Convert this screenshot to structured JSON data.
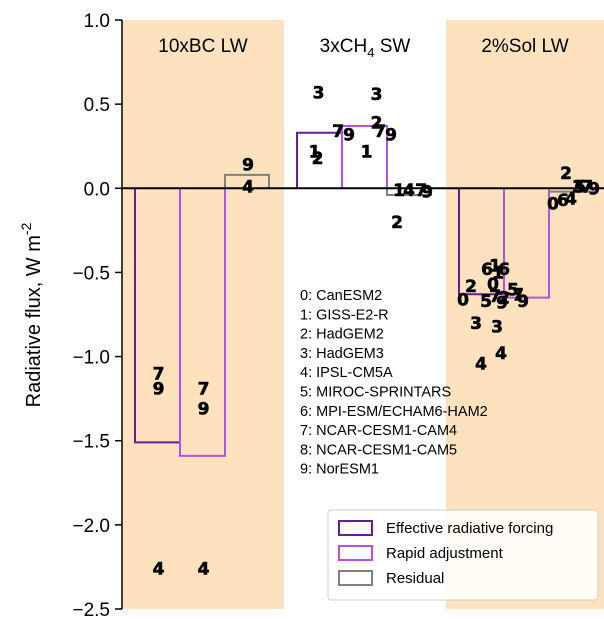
{
  "chart_data": {
    "type": "bar",
    "ylabel": "Radiative flux, W m",
    "ylabel_sup": "-2",
    "ylim": [
      -2.5,
      1.0
    ],
    "yticks": [
      1.0,
      0.5,
      0.0,
      -0.5,
      -1.0,
      -1.5,
      -2.0,
      -2.5
    ],
    "ytick_labels": [
      "1.0",
      "0.5",
      "0.0",
      "−0.5",
      "−1.0",
      "−1.5",
      "−2.0",
      "−2.5"
    ],
    "grid": false,
    "legend_position": "bottom-right",
    "panels": [
      {
        "label": "10xBC LW",
        "label_sub": "",
        "label_after": "",
        "shaded": true,
        "bars": [
          {
            "series": "Effective radiative forcing",
            "value": -1.51,
            "markers": [
              {
                "model": "7",
                "value": -1.1
              },
              {
                "model": "9",
                "value": -1.19
              },
              {
                "model": "4",
                "value": -2.26
              }
            ]
          },
          {
            "series": "Rapid adjustment",
            "value": -1.59,
            "markers": [
              {
                "model": "7",
                "value": -1.19
              },
              {
                "model": "9",
                "value": -1.31
              },
              {
                "model": "4",
                "value": -2.26
              }
            ]
          },
          {
            "series": "Residual",
            "value": 0.08,
            "markers": [
              {
                "model": "9",
                "value": 0.14
              },
              {
                "model": "4",
                "value": 0.01
              }
            ]
          }
        ]
      },
      {
        "label": "3xCH",
        "label_sub": "4",
        "label_after": " SW",
        "shaded": false,
        "bars": [
          {
            "series": "Effective radiative forcing",
            "value": 0.33,
            "markers": [
              {
                "model": "3",
                "value": 0.57
              },
              {
                "model": "1",
                "value": 0.22
              },
              {
                "model": "2",
                "value": 0.18
              }
            ]
          },
          {
            "series": "Rapid adjustment",
            "value": 0.37,
            "markers": [
              {
                "model": "7",
                "value": 0.34
              },
              {
                "model": "9",
                "value": 0.32
              },
              {
                "model": "3",
                "value": 0.56
              },
              {
                "model": "2",
                "value": 0.39
              },
              {
                "model": "1",
                "value": 0.22
              }
            ]
          },
          {
            "series": "Residual",
            "value": -0.04,
            "markers": [
              {
                "model": "7",
                "value": 0.34
              },
              {
                "model": "9",
                "value": 0.32
              },
              {
                "model": "1",
                "value": -0.01
              },
              {
                "model": "4",
                "value": -0.01
              },
              {
                "model": "7",
                "value": -0.01
              },
              {
                "model": "9",
                "value": -0.02
              },
              {
                "model": "2",
                "value": -0.2
              }
            ]
          }
        ]
      },
      {
        "label": "2%Sol LW",
        "label_sub": "",
        "label_after": "",
        "shaded": true,
        "bars": [
          {
            "series": "Effective radiative forcing",
            "value": -0.63,
            "markers": [
              {
                "model": "0",
                "value": -0.66
              },
              {
                "model": "2",
                "value": -0.58
              },
              {
                "model": "1",
                "value": -0.5
              },
              {
                "model": "6",
                "value": -0.48
              },
              {
                "model": "5",
                "value": -0.67
              },
              {
                "model": "7",
                "value": -0.64
              },
              {
                "model": "9",
                "value": -0.68
              },
              {
                "model": "3",
                "value": -0.8
              },
              {
                "model": "4",
                "value": -1.04
              }
            ]
          },
          {
            "series": "Rapid adjustment",
            "value": -0.65,
            "markers": [
              {
                "model": "1",
                "value": -0.46
              },
              {
                "model": "6",
                "value": -0.48
              },
              {
                "model": "0",
                "value": -0.57
              },
              {
                "model": "5",
                "value": -0.6
              },
              {
                "model": "2",
                "value": -0.65
              },
              {
                "model": "7",
                "value": -0.63
              },
              {
                "model": "9",
                "value": -0.67
              },
              {
                "model": "3",
                "value": -0.82
              },
              {
                "model": "4",
                "value": -0.98
              }
            ]
          },
          {
            "series": "Residual",
            "value": -0.02,
            "markers": [
              {
                "model": "2",
                "value": 0.09
              },
              {
                "model": "3",
                "value": 0.01
              },
              {
                "model": "5",
                "value": 0.01
              },
              {
                "model": "7",
                "value": 0.01
              },
              {
                "model": "9",
                "value": 0.0
              },
              {
                "model": "0",
                "value": -0.09
              },
              {
                "model": "4",
                "value": -0.06
              },
              {
                "model": "6",
                "value": -0.07
              }
            ]
          }
        ]
      }
    ],
    "models": [
      "0: CanESM2",
      "1: GISS-E2-R",
      "2: HadGEM2",
      "3: HadGEM3",
      "4: IPSL-CM5A",
      "5: MIROC-SPRINTARS",
      "6: MPI-ESM/ECHAM6-HAM2",
      "7: NCAR-CESM1-CAM4",
      "8: NCAR-CESM1-CAM5",
      "9: NorESM1"
    ],
    "legend": [
      {
        "label": "Effective radiative forcing",
        "color": "#6a1b9a"
      },
      {
        "label": "Rapid adjustment",
        "color": "#b44fe8"
      },
      {
        "label": "Residual",
        "color": "#808080"
      }
    ],
    "colors": {
      "panel_shade": "#fde2bd",
      "erf": "#6a1b9a",
      "rapid": "#b44fe8",
      "residual": "#808080",
      "zero_line": "#000000"
    }
  }
}
